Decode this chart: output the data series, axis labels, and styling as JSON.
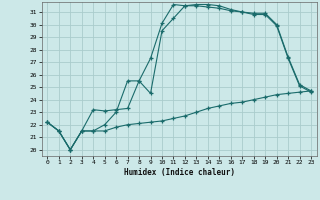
{
  "xlabel": "Humidex (Indice chaleur)",
  "bg_color": "#cce8e8",
  "grid_color": "#aacccc",
  "line_color": "#1a6b6b",
  "xlim": [
    -0.5,
    23.5
  ],
  "ylim": [
    19.5,
    31.8
  ],
  "yticks": [
    20,
    21,
    22,
    23,
    24,
    25,
    26,
    27,
    28,
    29,
    30,
    31
  ],
  "xticks": [
    0,
    1,
    2,
    3,
    4,
    5,
    6,
    7,
    8,
    9,
    10,
    11,
    12,
    13,
    14,
    15,
    16,
    17,
    18,
    19,
    20,
    21,
    22,
    23
  ],
  "line1_x": [
    0,
    1,
    2,
    3,
    4,
    5,
    6,
    7,
    8,
    9,
    10,
    11,
    12,
    13,
    14,
    15,
    16,
    17,
    18,
    19,
    20,
    21,
    22,
    23
  ],
  "line1_y": [
    22.2,
    21.5,
    20.0,
    21.5,
    23.2,
    23.1,
    23.2,
    23.3,
    25.5,
    27.3,
    30.1,
    31.6,
    31.5,
    31.5,
    31.4,
    31.3,
    31.1,
    31.0,
    30.9,
    30.9,
    30.0,
    27.4,
    25.2,
    24.7
  ],
  "line2_x": [
    0,
    1,
    2,
    3,
    4,
    5,
    6,
    7,
    8,
    9,
    10,
    11,
    12,
    13,
    14,
    15,
    16,
    17,
    18,
    19,
    20,
    21,
    22,
    23
  ],
  "line2_y": [
    22.2,
    21.5,
    20.0,
    21.5,
    21.5,
    22.0,
    23.0,
    25.5,
    25.5,
    24.5,
    29.5,
    30.5,
    31.5,
    31.6,
    31.6,
    31.5,
    31.2,
    31.0,
    30.8,
    30.8,
    29.9,
    27.3,
    25.1,
    24.6
  ],
  "line3_x": [
    0,
    1,
    2,
    3,
    4,
    5,
    6,
    7,
    8,
    9,
    10,
    11,
    12,
    13,
    14,
    15,
    16,
    17,
    18,
    19,
    20,
    21,
    22,
    23
  ],
  "line3_y": [
    22.2,
    21.5,
    20.0,
    21.5,
    21.5,
    21.5,
    21.8,
    22.0,
    22.1,
    22.2,
    22.3,
    22.5,
    22.7,
    23.0,
    23.3,
    23.5,
    23.7,
    23.8,
    24.0,
    24.2,
    24.4,
    24.5,
    24.6,
    24.7
  ]
}
